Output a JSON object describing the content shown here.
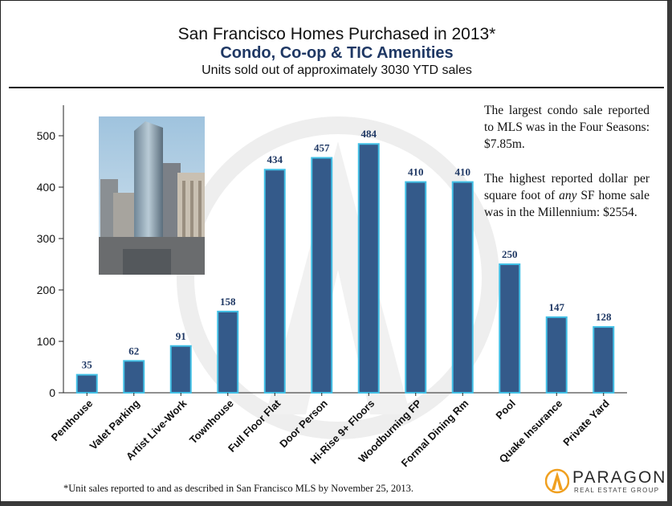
{
  "header": {
    "title": "San Francisco Homes Purchased in 2013*",
    "subtitle": "Condo, Co-op & TIC Amenities",
    "caption": "Units sold out of approximately 3030 YTD sales"
  },
  "notes": {
    "note1": "The largest condo sale reported to MLS was in the Four Seasons: $7.85m.",
    "note2_before": "The highest reported dollar per square foot of ",
    "note2_em": "any",
    "note2_after": " SF home sale was in the Millennium: $2554."
  },
  "footnote": "*Unit sales reported to and as described in San Francisco MLS by November 25, 2013.",
  "logo": {
    "brand": "PARAGON",
    "tagline": "REAL ESTATE GROUP"
  },
  "colors": {
    "bar_fill": "#345a8a",
    "bar_stroke": "#42c0e6",
    "subtitle": "#1f3864",
    "logo_orange": "#f0a020"
  },
  "chart_data": {
    "type": "bar",
    "title": "San Francisco Homes Purchased in 2013*",
    "categories": [
      "Penthouse",
      "Valet Parking",
      "Artist Live-Work",
      "Townhouse",
      "Full Floor Flat",
      "Door Person",
      "Hi-Rise 9+ Floors",
      "Woodburning FP",
      "Formal Dining Rm",
      "Pool",
      "Quake Insurance",
      "Private Yard"
    ],
    "values": [
      35,
      62,
      91,
      158,
      434,
      457,
      484,
      410,
      410,
      250,
      147,
      128
    ],
    "value_labels": [
      "35",
      "62",
      "91",
      "158",
      "434",
      "457",
      "484",
      "410",
      "410",
      "250",
      "147",
      "128"
    ],
    "yticks": [
      "0",
      "100",
      "200",
      "300",
      "400",
      "500"
    ],
    "ylim": [
      0,
      550
    ],
    "grid": false,
    "legend": "none"
  }
}
